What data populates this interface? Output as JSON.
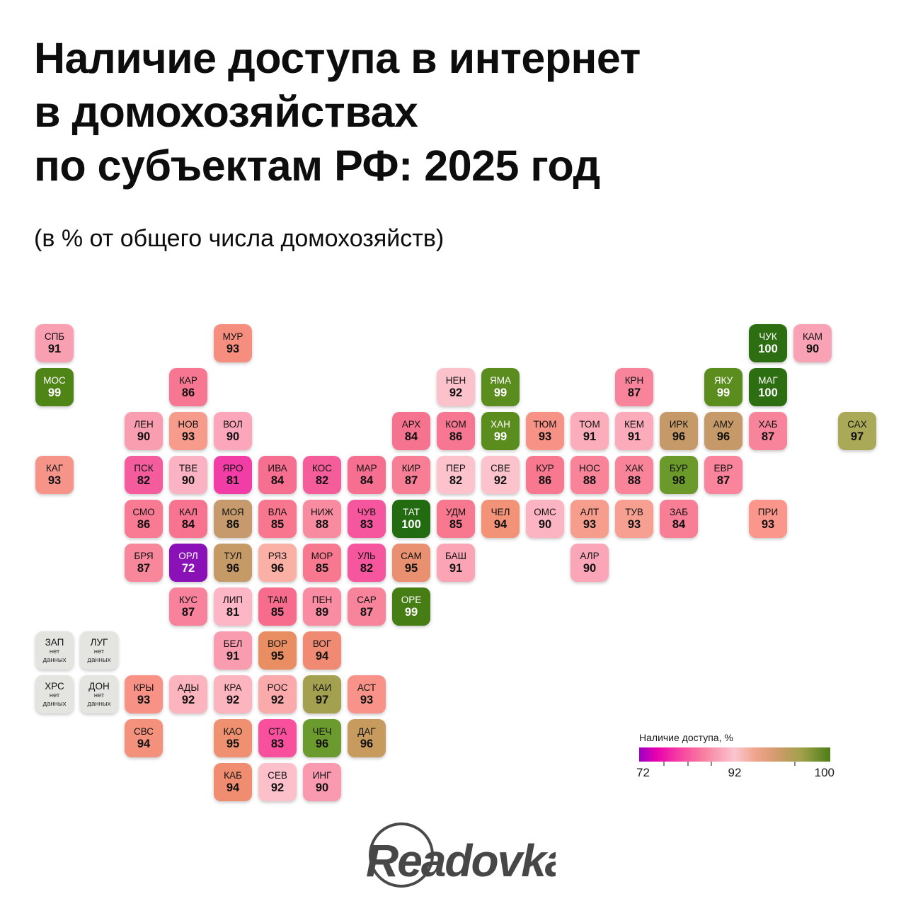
{
  "header": {
    "title_line1": "Наличие доступа в интернет",
    "title_line2": "в домохозяйствах",
    "title_line3": "по субъектам РФ: 2025 год",
    "subtitle": "(в % от общего числа домохозяйств)"
  },
  "legend": {
    "title": "Наличие доступа, %",
    "min_label": "72",
    "mid_label": "92",
    "max_label": "100"
  },
  "logo_text": "Readovka",
  "no_data": {
    "line1": "нет",
    "line2": "данных"
  },
  "chart_data": {
    "type": "heatmap",
    "subtype": "tile-grid-cartogram",
    "title": "Наличие доступа в интернет в домохозяйствах по субъектам РФ: 2025 год",
    "unit": "% от общего числа домохозяйств",
    "scale": {
      "min": 72,
      "mid": 92,
      "max": 100,
      "gradient": [
        "#9b00c4",
        "#e800ae",
        "#f53ba2",
        "#f87ba0",
        "#fbc6ce",
        "#efa48d",
        "#d29a6d",
        "#a0a14b",
        "#4d7d16"
      ]
    },
    "no_data_value": "нет данных",
    "tiles": [
      {
        "code": "СПБ",
        "value": 91,
        "col": 0,
        "row": 0,
        "color": "#f99fb2"
      },
      {
        "code": "МУР",
        "value": 93,
        "col": 4,
        "row": 0,
        "color": "#f68e80"
      },
      {
        "code": "ЧУК",
        "value": 100,
        "col": 16,
        "row": 0,
        "color": "#2e6e12",
        "text": "light"
      },
      {
        "code": "КАМ",
        "value": 90,
        "col": 17,
        "row": 0,
        "color": "#f9a2b5"
      },
      {
        "code": "МОС",
        "value": 99,
        "col": 0,
        "row": 1,
        "color": "#4f8517",
        "text": "light"
      },
      {
        "code": "КАР",
        "value": 86,
        "col": 3,
        "row": 1,
        "color": "#f77792"
      },
      {
        "code": "НЕН",
        "value": 92,
        "col": 9,
        "row": 1,
        "color": "#fcc2cc"
      },
      {
        "code": "ЯМА",
        "value": 99,
        "col": 10,
        "row": 1,
        "color": "#5a8c1e",
        "text": "light"
      },
      {
        "code": "КРН",
        "value": 87,
        "col": 13,
        "row": 1,
        "color": "#f8849b"
      },
      {
        "code": "ЯКУ",
        "value": 99,
        "col": 15,
        "row": 1,
        "color": "#5a8c1e",
        "text": "light"
      },
      {
        "code": "МАГ",
        "value": 100,
        "col": 16,
        "row": 1,
        "color": "#2e6e12",
        "text": "light"
      },
      {
        "code": "ЛЕН",
        "value": 90,
        "col": 2,
        "row": 2,
        "color": "#f99db1"
      },
      {
        "code": "НОВ",
        "value": 93,
        "col": 3,
        "row": 2,
        "color": "#f79c8d"
      },
      {
        "code": "ВОЛ",
        "value": 90,
        "col": 4,
        "row": 2,
        "color": "#fba6ba"
      },
      {
        "code": "АРХ",
        "value": 84,
        "col": 8,
        "row": 2,
        "color": "#f6738f"
      },
      {
        "code": "КОМ",
        "value": 86,
        "col": 9,
        "row": 2,
        "color": "#f77792"
      },
      {
        "code": "ХАН",
        "value": 99,
        "col": 10,
        "row": 2,
        "color": "#5a8c1e",
        "text": "light"
      },
      {
        "code": "ТЮМ",
        "value": 93,
        "col": 11,
        "row": 2,
        "color": "#f79386"
      },
      {
        "code": "ТОМ",
        "value": 91,
        "col": 12,
        "row": 2,
        "color": "#fbadbc"
      },
      {
        "code": "КЕМ",
        "value": 91,
        "col": 13,
        "row": 2,
        "color": "#fbabba"
      },
      {
        "code": "ИРК",
        "value": 96,
        "col": 14,
        "row": 2,
        "color": "#c69a68"
      },
      {
        "code": "АМУ",
        "value": 96,
        "col": 15,
        "row": 2,
        "color": "#c69a68"
      },
      {
        "code": "ХАБ",
        "value": 87,
        "col": 16,
        "row": 2,
        "color": "#f8849b"
      },
      {
        "code": "САХ",
        "value": 97,
        "col": 18,
        "row": 2,
        "color": "#aaa957"
      },
      {
        "code": "КАГ",
        "value": 93,
        "col": 0,
        "row": 3,
        "color": "#f79489"
      },
      {
        "code": "ПСК",
        "value": 82,
        "col": 2,
        "row": 3,
        "color": "#f45c9e"
      },
      {
        "code": "ТВЕ",
        "value": 90,
        "col": 3,
        "row": 3,
        "color": "#fbb3c3"
      },
      {
        "code": "ЯРО",
        "value": 81,
        "col": 4,
        "row": 3,
        "color": "#f23da6"
      },
      {
        "code": "ИВА",
        "value": 84,
        "col": 5,
        "row": 3,
        "color": "#f66f90"
      },
      {
        "code": "КОС",
        "value": 82,
        "col": 6,
        "row": 3,
        "color": "#f45c9a"
      },
      {
        "code": "МАР",
        "value": 84,
        "col": 7,
        "row": 3,
        "color": "#f66f90"
      },
      {
        "code": "КИР",
        "value": 87,
        "col": 8,
        "row": 3,
        "color": "#f87e96"
      },
      {
        "code": "ПЕР",
        "value": 82,
        "col": 9,
        "row": 3,
        "color": "#fcc3cd"
      },
      {
        "code": "СВЕ",
        "value": 92,
        "col": 10,
        "row": 3,
        "color": "#fcc3cd"
      },
      {
        "code": "КУР",
        "value": 86,
        "col": 11,
        "row": 3,
        "color": "#f8788f"
      },
      {
        "code": "НОС",
        "value": 88,
        "col": 12,
        "row": 3,
        "color": "#f9849a"
      },
      {
        "code": "ХАК",
        "value": 88,
        "col": 13,
        "row": 3,
        "color": "#f9849a"
      },
      {
        "code": "БУР",
        "value": 98,
        "col": 14,
        "row": 3,
        "color": "#6b9a2a"
      },
      {
        "code": "ЕВР",
        "value": 87,
        "col": 15,
        "row": 3,
        "color": "#f9849b"
      },
      {
        "code": "СМО",
        "value": 86,
        "col": 2,
        "row": 4,
        "color": "#f87b93"
      },
      {
        "code": "КАЛ",
        "value": 84,
        "col": 3,
        "row": 4,
        "color": "#f7738f"
      },
      {
        "code": "МОЯ",
        "value": 86,
        "col": 4,
        "row": 4,
        "color": "#c69a6c"
      },
      {
        "code": "ВЛА",
        "value": 85,
        "col": 5,
        "row": 4,
        "color": "#f8778f"
      },
      {
        "code": "НИЖ",
        "value": 88,
        "col": 6,
        "row": 4,
        "color": "#f98ba0"
      },
      {
        "code": "ЧУВ",
        "value": 83,
        "col": 7,
        "row": 4,
        "color": "#f5569e"
      },
      {
        "code": "ТАТ",
        "value": 100,
        "col": 8,
        "row": 4,
        "color": "#226b10",
        "text": "light"
      },
      {
        "code": "УДМ",
        "value": 85,
        "col": 9,
        "row": 4,
        "color": "#f8788f"
      },
      {
        "code": "ЧЕЛ",
        "value": 94,
        "col": 10,
        "row": 4,
        "color": "#f29276"
      },
      {
        "code": "ОМС",
        "value": 90,
        "col": 11,
        "row": 4,
        "color": "#fcb3c2"
      },
      {
        "code": "АЛТ",
        "value": 93,
        "col": 12,
        "row": 4,
        "color": "#f79d8e"
      },
      {
        "code": "ТУВ",
        "value": 93,
        "col": 13,
        "row": 4,
        "color": "#f7a091"
      },
      {
        "code": "ЗАБ",
        "value": 84,
        "col": 14,
        "row": 4,
        "color": "#f87e96"
      },
      {
        "code": "ПРИ",
        "value": 93,
        "col": 16,
        "row": 4,
        "color": "#fa968c"
      },
      {
        "code": "БРЯ",
        "value": 87,
        "col": 2,
        "row": 5,
        "color": "#f9879c"
      },
      {
        "code": "ОРЛ",
        "value": 72,
        "col": 3,
        "row": 5,
        "color": "#8a10b8",
        "text": "light"
      },
      {
        "code": "ТУЛ",
        "value": 96,
        "col": 4,
        "row": 5,
        "color": "#c69a66"
      },
      {
        "code": "РЯЗ",
        "value": 96,
        "col": 5,
        "row": 5,
        "color": "#fbb0a6"
      },
      {
        "code": "МОР",
        "value": 85,
        "col": 6,
        "row": 5,
        "color": "#f8798f"
      },
      {
        "code": "УЛЬ",
        "value": 82,
        "col": 7,
        "row": 5,
        "color": "#f5569e"
      },
      {
        "code": "САМ",
        "value": 95,
        "col": 8,
        "row": 5,
        "color": "#e89070"
      },
      {
        "code": "БАШ",
        "value": 91,
        "col": 9,
        "row": 5,
        "color": "#fba4b6"
      },
      {
        "code": "АЛР",
        "value": 90,
        "col": 12,
        "row": 5,
        "color": "#fba6b8"
      },
      {
        "code": "КУС",
        "value": 87,
        "col": 3,
        "row": 6,
        "color": "#f8819b"
      },
      {
        "code": "ЛИП",
        "value": 81,
        "col": 4,
        "row": 6,
        "color": "#fcb6c5"
      },
      {
        "code": "ТАМ",
        "value": 85,
        "col": 5,
        "row": 6,
        "color": "#f76b8c"
      },
      {
        "code": "ПЕН",
        "value": 89,
        "col": 6,
        "row": 6,
        "color": "#f98ba2"
      },
      {
        "code": "САР",
        "value": 87,
        "col": 7,
        "row": 6,
        "color": "#f8849b"
      },
      {
        "code": "ОРЕ",
        "value": 99,
        "col": 8,
        "row": 6,
        "color": "#477d15",
        "text": "light"
      },
      {
        "code": "ЗАП",
        "value": null,
        "col": 0,
        "row": 7,
        "color": "#e4e4e1"
      },
      {
        "code": "ЛУГ",
        "value": null,
        "col": 1,
        "row": 7,
        "color": "#e4e4e1"
      },
      {
        "code": "БЕЛ",
        "value": 91,
        "col": 4,
        "row": 7,
        "color": "#fa9cb0"
      },
      {
        "code": "ВОР",
        "value": 95,
        "col": 5,
        "row": 7,
        "color": "#e88e62"
      },
      {
        "code": "ВОГ",
        "value": 94,
        "col": 6,
        "row": 7,
        "color": "#f08a72"
      },
      {
        "code": "ХРС",
        "value": null,
        "col": 0,
        "row": 8,
        "color": "#e4e4e1"
      },
      {
        "code": "ДОН",
        "value": null,
        "col": 1,
        "row": 8,
        "color": "#e4e4e1"
      },
      {
        "code": "КРЫ",
        "value": 93,
        "col": 2,
        "row": 8,
        "color": "#f89186"
      },
      {
        "code": "АДЫ",
        "value": 92,
        "col": 3,
        "row": 8,
        "color": "#fcb4bf"
      },
      {
        "code": "КРА",
        "value": 92,
        "col": 4,
        "row": 8,
        "color": "#fcb4bf"
      },
      {
        "code": "РОС",
        "value": 92,
        "col": 5,
        "row": 8,
        "color": "#fbaaab"
      },
      {
        "code": "КАИ",
        "value": 97,
        "col": 6,
        "row": 8,
        "color": "#a3a050"
      },
      {
        "code": "АСТ",
        "value": 93,
        "col": 7,
        "row": 8,
        "color": "#f99288"
      },
      {
        "code": "СВС",
        "value": 94,
        "col": 2,
        "row": 9,
        "color": "#f4917c"
      },
      {
        "code": "КАО",
        "value": 95,
        "col": 4,
        "row": 9,
        "color": "#ef9170"
      },
      {
        "code": "СТА",
        "value": 83,
        "col": 5,
        "row": 9,
        "color": "#f9509d"
      },
      {
        "code": "ЧЕЧ",
        "value": 96,
        "col": 6,
        "row": 9,
        "color": "#6b9a2e"
      },
      {
        "code": "ДАГ",
        "value": 96,
        "col": 7,
        "row": 9,
        "color": "#c79a5e"
      },
      {
        "code": "КАБ",
        "value": 94,
        "col": 4,
        "row": 10,
        "color": "#f08d70"
      },
      {
        "code": "СЕВ",
        "value": 92,
        "col": 5,
        "row": 10,
        "color": "#fcc0cb"
      },
      {
        "code": "ИНГ",
        "value": 90,
        "col": 6,
        "row": 10,
        "color": "#fa9ab0"
      }
    ]
  }
}
